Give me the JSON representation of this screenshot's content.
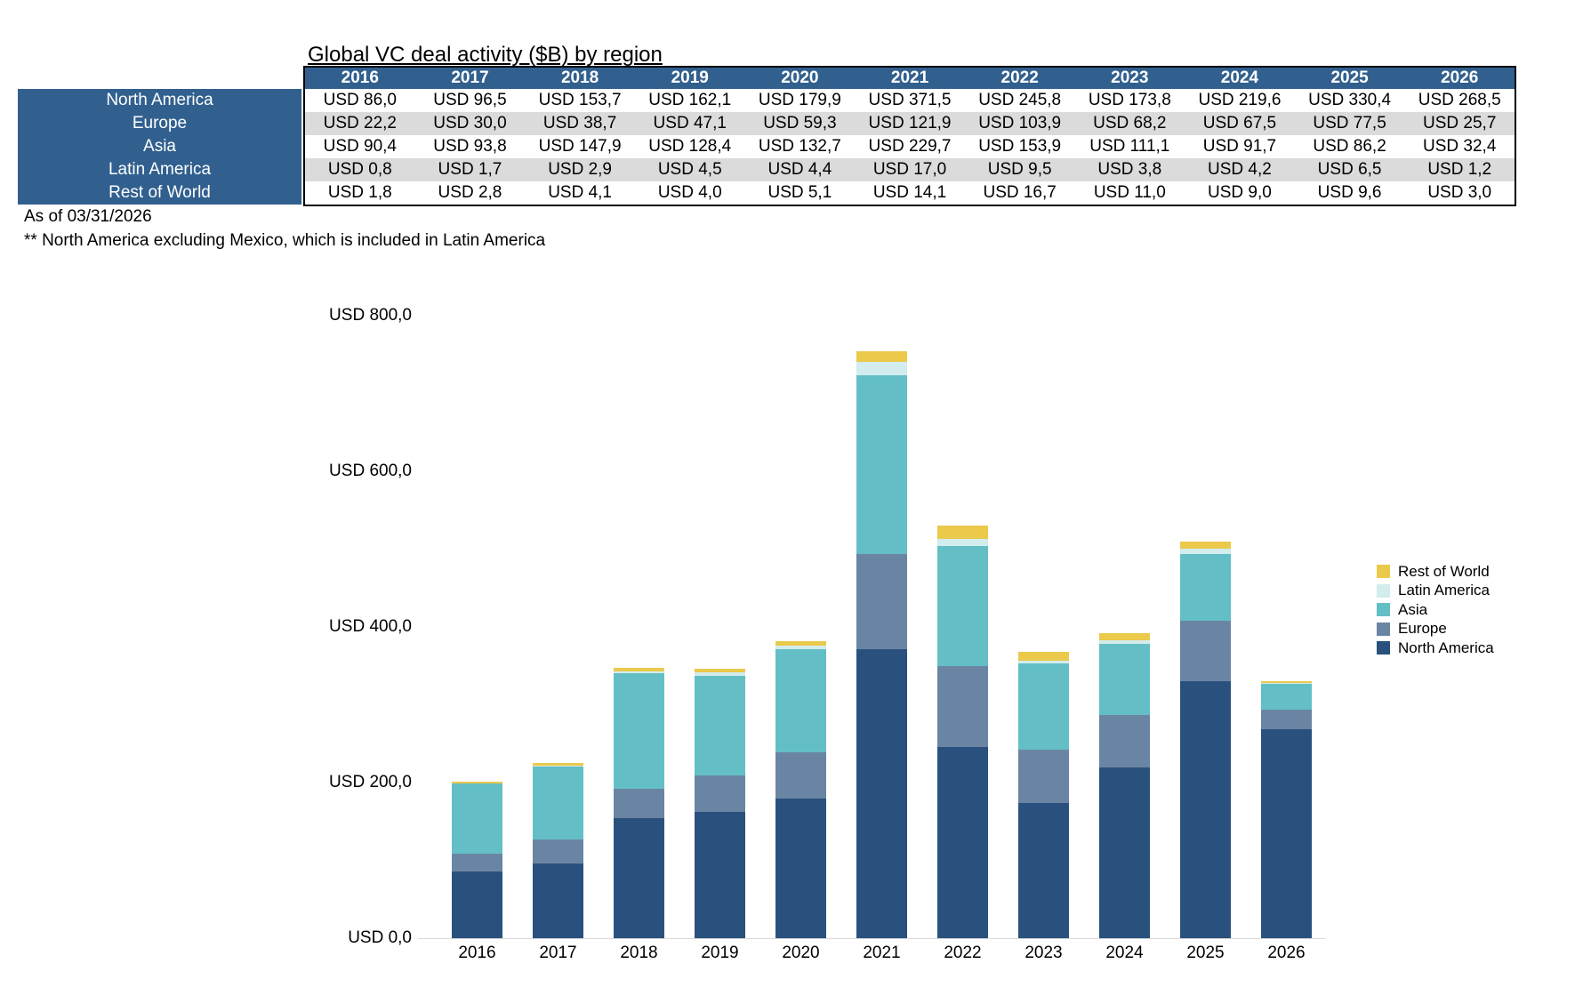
{
  "title": "Global VC deal activity ($B) by region",
  "footnotes": [
    "As of 03/31/2026",
    "** North America excluding Mexico, which is included in Latin America"
  ],
  "table": {
    "currency_prefix": "USD",
    "decimal_separator": ","
  },
  "chart_data": {
    "type": "bar",
    "stacked": true,
    "title": "Global VC deal activity ($B) by region",
    "categories": [
      "2016",
      "2017",
      "2018",
      "2019",
      "2020",
      "2021",
      "2022",
      "2023",
      "2024",
      "2025",
      "2026"
    ],
    "series": [
      {
        "name": "North America",
        "color": "#2A517E",
        "values": [
          86.0,
          96.5,
          153.7,
          162.1,
          179.9,
          371.5,
          245.8,
          173.8,
          219.6,
          330.4,
          268.5
        ]
      },
      {
        "name": "Europe",
        "color": "#6A85A3",
        "values": [
          22.2,
          30.0,
          38.7,
          47.1,
          59.3,
          121.9,
          103.9,
          68.2,
          67.5,
          77.5,
          25.7
        ]
      },
      {
        "name": "Asia",
        "color": "#63BFC5",
        "values": [
          90.4,
          93.8,
          147.9,
          128.4,
          132.7,
          229.7,
          153.9,
          111.1,
          91.7,
          86.2,
          32.4
        ]
      },
      {
        "name": "Latin America",
        "color": "#D3ECEE",
        "values": [
          0.8,
          1.7,
          2.9,
          4.5,
          4.4,
          17.0,
          9.5,
          3.8,
          4.2,
          6.5,
          1.2
        ]
      },
      {
        "name": "Rest of World",
        "color": "#EAC94B",
        "values": [
          1.8,
          2.8,
          4.1,
          4.0,
          5.1,
          14.1,
          16.7,
          11.0,
          9.0,
          9.6,
          3.0
        ]
      }
    ],
    "yticks": [
      0,
      200,
      400,
      600,
      800
    ],
    "ytick_labels": [
      "USD 0,0",
      "USD 200,0",
      "USD 400,0",
      "USD 600,0",
      "USD 800,0"
    ],
    "ylim": [
      0,
      800
    ],
    "grid": false,
    "legend_position": "right",
    "legend_order": [
      "Rest of World",
      "Latin America",
      "Asia",
      "Europe",
      "North America"
    ]
  }
}
